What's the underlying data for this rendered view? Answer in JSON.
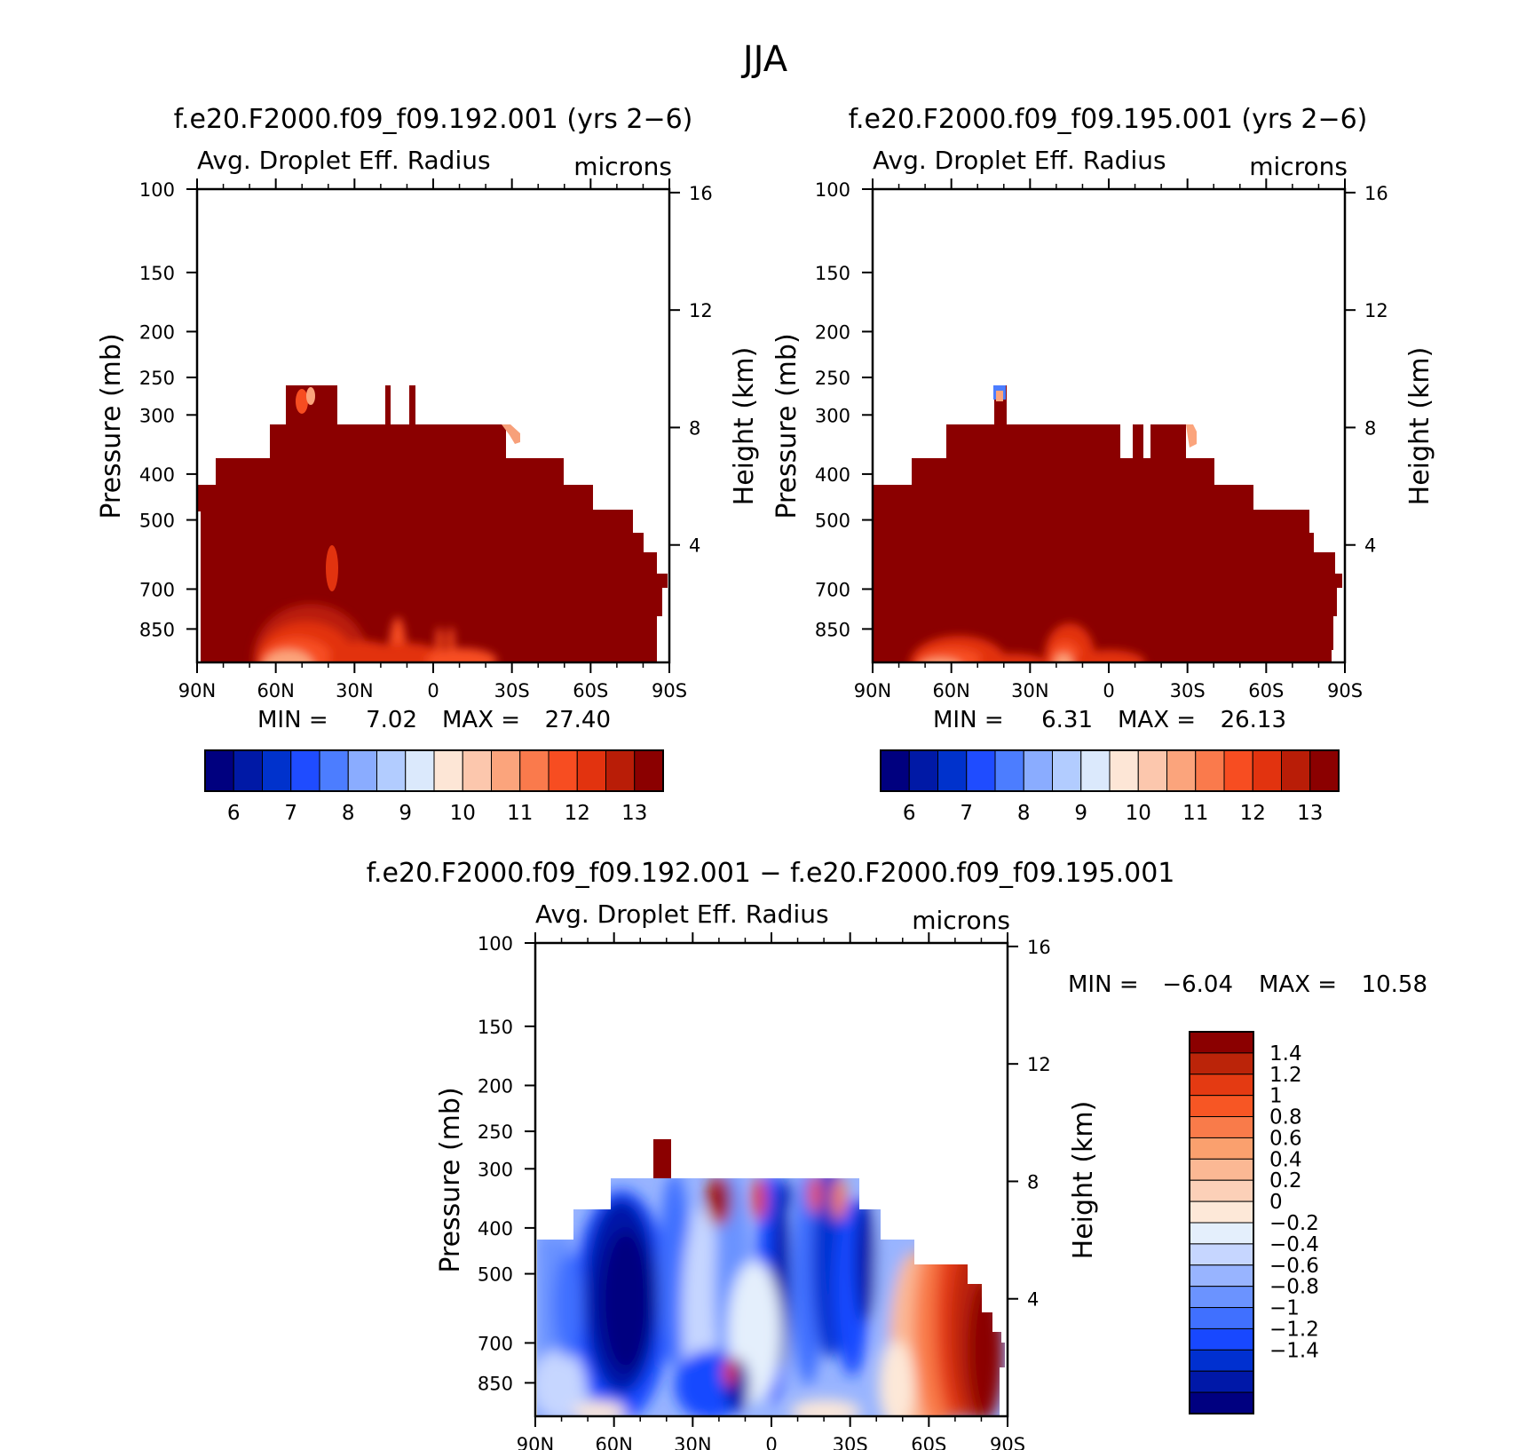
{
  "figure_title": "JJA",
  "colors": {
    "dark_red": "#8b0000",
    "seq": [
      "#00007f",
      "#0019a6",
      "#0032cc",
      "#1f4cff",
      "#4c7dff",
      "#8aacff",
      "#b2ccff",
      "#dbe9fc",
      "#fde6d6",
      "#fcc7ad",
      "#fba47c",
      "#fa7a4c",
      "#f74d21",
      "#e2330f",
      "#b91d07",
      "#8b0000"
    ],
    "div": [
      "#000080",
      "#0018a8",
      "#0030d0",
      "#1848ff",
      "#4070ff",
      "#6b93ff",
      "#98b4ff",
      "#c6d6ff",
      "#e4effc",
      "#fde8d8",
      "#fcd0b8",
      "#fbb894",
      "#faa06e",
      "#f97b4a",
      "#f75624",
      "#e43a12",
      "#bb2409",
      "#8b0000"
    ]
  },
  "chart_data": [
    {
      "type": "heatmap",
      "panel": "192",
      "title": "f.e20.F2000.f09_f09.192.001 (yrs 2−6)",
      "subtitle_left": "Avg. Droplet Eff. Radius",
      "subtitle_right": "microns",
      "ylabel": "Pressure (mb)",
      "ylabel_right": "Height (km)",
      "xticks": [
        "90N",
        "60N",
        "30N",
        "0",
        "30S",
        "60S",
        "90S"
      ],
      "yticks": [
        100,
        150,
        200,
        250,
        300,
        400,
        500,
        700,
        850
      ],
      "yticks_right": [
        16,
        12,
        8,
        4
      ],
      "ylim": [
        100,
        1000
      ],
      "min_label": "MIN =",
      "min_value": "7.02",
      "max_label": "MAX =",
      "max_value": "27.40",
      "colorbar_ticks": [
        "6",
        "7",
        "8",
        "9",
        "10",
        "11",
        "12",
        "13"
      ]
    },
    {
      "type": "heatmap",
      "panel": "195",
      "title": "f.e20.F2000.f09_f09.195.001 (yrs 2−6)",
      "subtitle_left": "Avg. Droplet Eff. Radius",
      "subtitle_right": "microns",
      "ylabel": "Pressure (mb)",
      "ylabel_right": "Height (km)",
      "xticks": [
        "90N",
        "60N",
        "30N",
        "0",
        "30S",
        "60S",
        "90S"
      ],
      "yticks": [
        100,
        150,
        200,
        250,
        300,
        400,
        500,
        700,
        850
      ],
      "yticks_right": [
        16,
        12,
        8,
        4
      ],
      "ylim": [
        100,
        1000
      ],
      "min_label": "MIN =",
      "min_value": "6.31",
      "max_label": "MAX =",
      "max_value": "26.13",
      "colorbar_ticks": [
        "6",
        "7",
        "8",
        "9",
        "10",
        "11",
        "12",
        "13"
      ]
    },
    {
      "type": "heatmap",
      "panel": "diff",
      "title": "f.e20.F2000.f09_f09.192.001 − f.e20.F2000.f09_f09.195.001",
      "subtitle_left": "Avg. Droplet Eff. Radius",
      "subtitle_right": "microns",
      "ylabel": "Pressure (mb)",
      "ylabel_right": "Height (km)",
      "xticks": [
        "90N",
        "60N",
        "30N",
        "0",
        "30S",
        "60S",
        "90S"
      ],
      "yticks": [
        100,
        150,
        200,
        250,
        300,
        400,
        500,
        700,
        850
      ],
      "yticks_right": [
        16,
        12,
        8,
        4
      ],
      "ylim": [
        100,
        1000
      ],
      "min_label": "MIN =",
      "min_value": "−6.04",
      "max_label": "MAX =",
      "max_value": "10.58",
      "colorbar_ticks": [
        "1.4",
        "1.2",
        "1",
        "0.8",
        "0.6",
        "0.4",
        "0.2",
        "0",
        "−0.2",
        "−0.4",
        "−0.6",
        "−0.8",
        "−1",
        "−1.2",
        "−1.4"
      ]
    }
  ]
}
